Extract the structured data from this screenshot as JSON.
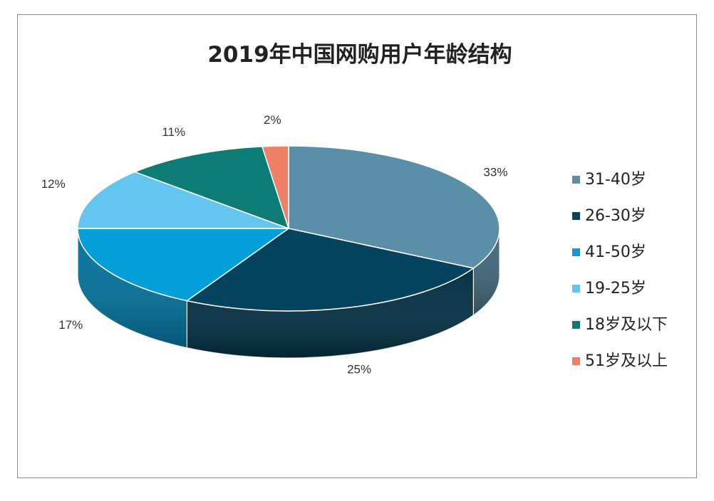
{
  "chart_data": {
    "type": "pie",
    "title": "2019年中国网购用户年龄结构",
    "slices": [
      {
        "name": "31-40岁",
        "value": 33,
        "label": "33%",
        "color": "#5b8fa8"
      },
      {
        "name": "26-30岁",
        "value": 25,
        "label": "25%",
        "color": "#06435e"
      },
      {
        "name": "41-50岁",
        "value": 17,
        "label": "17%",
        "color": "#049fd9"
      },
      {
        "name": "19-25岁",
        "value": 12,
        "label": "12%",
        "color": "#64c6ef"
      },
      {
        "name": "18岁及以下",
        "value": 11,
        "label": "11%",
        "color": "#0d7c75"
      },
      {
        "name": "51岁及以上",
        "value": 2,
        "label": "2%",
        "color": "#f07f68"
      }
    ],
    "legend_position": "right",
    "style": "3d-pie"
  }
}
